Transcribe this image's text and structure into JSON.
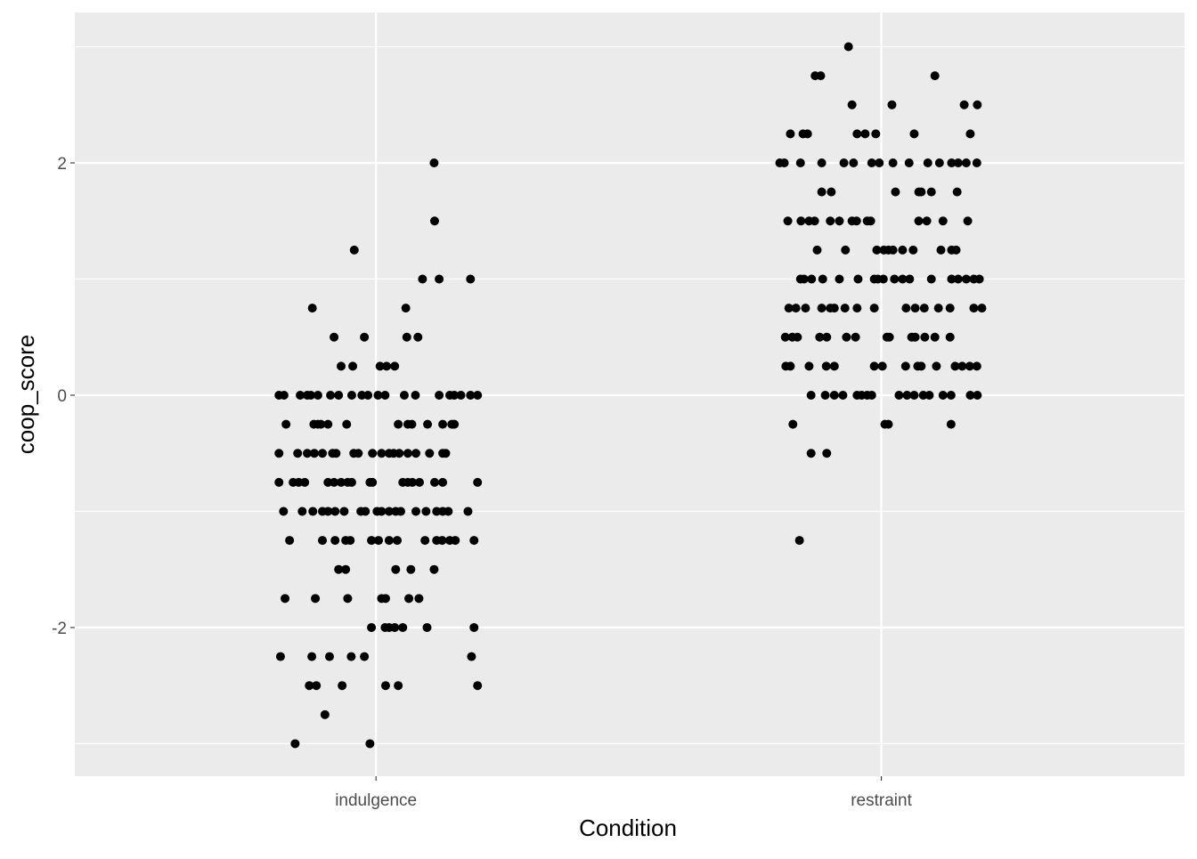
{
  "chart_data": {
    "type": "scatter",
    "title": "",
    "xlabel": "Condition",
    "ylabel": "coop_score",
    "categories": [
      "indulgence",
      "restraint"
    ],
    "ylim": [
      -3.28,
      3.295
    ],
    "xlim": [
      0.404,
      2.6
    ],
    "yticks": [
      -2,
      0,
      2
    ],
    "ytick_labels": [
      "-2",
      "0",
      "2"
    ],
    "grid": true,
    "jitter_note": "x offsets relative to category center, in category units",
    "series": [
      {
        "name": "indulgence",
        "rows": [
          {
            "y": 2,
            "x_jitter": [
              0.115
            ]
          },
          {
            "y": 1.5,
            "x_jitter": [
              0.116
            ]
          },
          {
            "y": 1.25,
            "x_jitter": [
              -0.043
            ]
          },
          {
            "y": 1,
            "x_jitter": [
              0.092,
              0.125,
              0.187
            ]
          },
          {
            "y": 0.75,
            "x_jitter": [
              -0.126,
              0.059
            ]
          },
          {
            "y": 0.5,
            "x_jitter": [
              -0.083,
              -0.023,
              0.061,
              0.083
            ]
          },
          {
            "y": 0.25,
            "x_jitter": [
              -0.069,
              -0.046,
              0.008,
              0.021,
              0.037
            ]
          },
          {
            "y": 0,
            "x_jitter": [
              -0.192,
              -0.182,
              -0.15,
              -0.136,
              -0.129,
              -0.115,
              -0.09,
              -0.074,
              -0.048,
              -0.028,
              -0.016,
              0.004,
              0.018,
              0.056,
              0.078,
              0.125,
              0.146,
              0.155,
              0.168,
              0.187,
              0.201
            ]
          },
          {
            "y": -0.25,
            "x_jitter": [
              -0.178,
              -0.123,
              -0.115,
              -0.109,
              -0.095,
              -0.058,
              0.044,
              0.063,
              0.071,
              0.102,
              0.132,
              0.15,
              0.155
            ]
          },
          {
            "y": -0.5,
            "x_jitter": [
              -0.192,
              -0.155,
              -0.136,
              -0.122,
              -0.106,
              -0.086,
              -0.079,
              -0.044,
              -0.035,
              -0.007,
              0.011,
              0.026,
              0.035,
              0.046,
              0.063,
              0.079,
              0.106,
              0.132,
              0.138
            ]
          },
          {
            "y": -0.75,
            "x_jitter": [
              -0.192,
              -0.164,
              -0.153,
              -0.141,
              -0.095,
              -0.083,
              -0.069,
              -0.056,
              -0.048,
              -0.012,
              -0.007,
              0.053,
              0.063,
              0.072,
              0.086,
              0.116,
              0.132,
              0.201
            ]
          },
          {
            "y": -1,
            "x_jitter": [
              -0.183,
              -0.146,
              -0.125,
              -0.106,
              -0.095,
              -0.081,
              -0.063,
              -0.03,
              -0.021,
              0.002,
              0.011,
              0.026,
              0.039,
              0.049,
              0.079,
              0.099,
              0.12,
              0.132,
              0.143,
              0.182
            ]
          },
          {
            "y": -1.25,
            "x_jitter": [
              -0.171,
              -0.106,
              -0.081,
              -0.06,
              -0.051,
              -0.009,
              0.005,
              0.026,
              0.042,
              0.097,
              0.12,
              0.131,
              0.146,
              0.157,
              0.194
            ]
          },
          {
            "y": -1.5,
            "x_jitter": [
              -0.074,
              -0.06,
              0.039,
              0.069,
              0.115
            ]
          },
          {
            "y": -1.75,
            "x_jitter": [
              -0.18,
              -0.12,
              -0.056,
              0.011,
              0.019,
              0.065,
              0.085
            ]
          },
          {
            "y": -2,
            "x_jitter": [
              -0.009,
              0.018,
              0.026,
              0.037,
              0.053,
              0.101,
              0.194
            ]
          },
          {
            "y": -2.25,
            "x_jitter": [
              -0.189,
              -0.127,
              -0.092,
              -0.049,
              -0.023,
              0.189
            ]
          },
          {
            "y": -2.5,
            "x_jitter": [
              -0.132,
              -0.118,
              -0.067,
              0.019,
              0.044,
              0.201
            ]
          },
          {
            "y": -2.75,
            "x_jitter": [
              -0.101
            ]
          },
          {
            "y": -3,
            "x_jitter": [
              -0.16,
              -0.012
            ]
          }
        ]
      },
      {
        "name": "restraint",
        "rows": [
          {
            "y": 3,
            "x_jitter": [
              -0.065
            ]
          },
          {
            "y": 2.75,
            "x_jitter": [
              -0.131,
              -0.12,
              0.106
            ]
          },
          {
            "y": 2.5,
            "x_jitter": [
              -0.058,
              0.021,
              0.164,
              0.19
            ]
          },
          {
            "y": 2.25,
            "x_jitter": [
              -0.18,
              -0.155,
              -0.146,
              -0.048,
              -0.032,
              -0.011,
              0.065,
              0.176
            ]
          },
          {
            "y": 2,
            "x_jitter": [
              -0.201,
              -0.192,
              -0.16,
              -0.118,
              -0.074,
              -0.055,
              -0.019,
              -0.004,
              0.023,
              0.055,
              0.092,
              0.115,
              0.139,
              0.152,
              0.168,
              0.189
            ]
          },
          {
            "y": 1.75,
            "x_jitter": [
              -0.118,
              -0.099,
              0.028,
              0.074,
              0.079,
              0.099,
              0.15
            ]
          },
          {
            "y": 1.5,
            "x_jitter": [
              -0.185,
              -0.159,
              -0.143,
              -0.132,
              -0.101,
              -0.083,
              -0.058,
              -0.049,
              -0.028,
              -0.021,
              0.074,
              0.09,
              0.122,
              0.171
            ]
          },
          {
            "y": 1.25,
            "x_jitter": [
              -0.127,
              -0.071,
              -0.009,
              0.005,
              0.014,
              0.023,
              0.042,
              0.063,
              0.118,
              0.139,
              0.148
            ]
          },
          {
            "y": 1,
            "x_jitter": [
              -0.16,
              -0.153,
              -0.138,
              -0.116,
              -0.083,
              -0.046,
              -0.014,
              -0.007,
              0.004,
              0.026,
              0.042,
              0.056,
              0.099,
              0.139,
              0.152,
              0.168,
              0.183,
              0.194
            ]
          },
          {
            "y": 0.75,
            "x_jitter": [
              -0.183,
              -0.169,
              -0.15,
              -0.118,
              -0.101,
              -0.093,
              -0.072,
              -0.048,
              -0.014,
              0.049,
              0.067,
              0.085,
              0.113,
              0.136,
              0.183,
              0.199
            ]
          },
          {
            "y": 0.5,
            "x_jitter": [
              -0.19,
              -0.176,
              -0.166,
              -0.122,
              -0.108,
              -0.069,
              -0.051,
              0.011,
              0.016,
              0.06,
              0.067,
              0.086,
              0.106,
              0.136
            ]
          },
          {
            "y": 0.25,
            "x_jitter": [
              -0.189,
              -0.18,
              -0.143,
              -0.109,
              -0.093,
              -0.014,
              0.002,
              0.048,
              0.072,
              0.079,
              0.109,
              0.146,
              0.16,
              0.175,
              0.189
            ]
          },
          {
            "y": 0,
            "x_jitter": [
              -0.139,
              -0.111,
              -0.093,
              -0.076,
              -0.048,
              -0.039,
              -0.028,
              -0.019,
              0.035,
              0.051,
              0.065,
              0.083,
              0.095,
              0.122,
              0.138,
              0.176,
              0.19
            ]
          },
          {
            "y": -0.25,
            "x_jitter": [
              -0.175,
              0.007,
              0.014,
              0.138
            ]
          },
          {
            "y": -0.5,
            "x_jitter": [
              -0.139,
              -0.108
            ]
          },
          {
            "y": -1.25,
            "x_jitter": [
              -0.162
            ]
          }
        ]
      }
    ],
    "colors": {
      "panel": "#EBEBEB",
      "grid": "#FFFFFF",
      "point": "#000000",
      "tick_text": "#4D4D4D",
      "axis_title": "#000000"
    }
  }
}
